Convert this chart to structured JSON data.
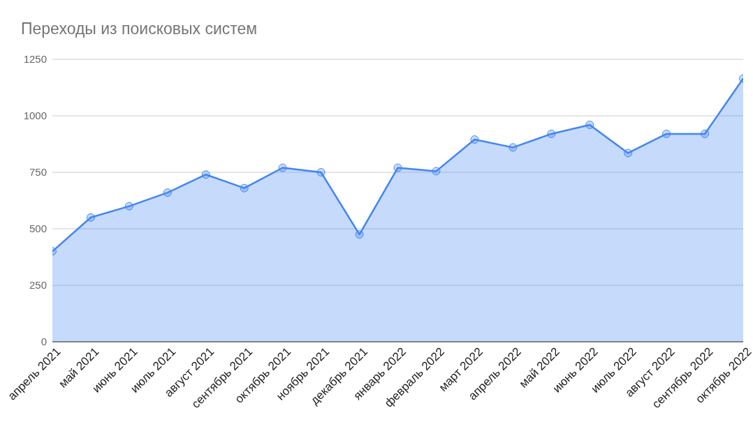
{
  "chart_data": {
    "type": "area",
    "title": "Переходы из поисковых систем",
    "categories": [
      "апрель 2021",
      "май 2021",
      "июнь 2021",
      "июль 2021",
      "август 2021",
      "сентябрь 2021",
      "октябрь 2021",
      "ноябрь 2021",
      "декабрь 2021",
      "январь 2022",
      "февраль 2022",
      "март 2022",
      "апрель 2022",
      "май 2022",
      "июнь 2022",
      "июль 2022",
      "август 2022",
      "сентябрь 2022",
      "октябрь 2022"
    ],
    "series": [
      {
        "color": "#4285f4",
        "values": [
          400,
          550,
          600,
          660,
          740,
          680,
          770,
          750,
          475,
          770,
          755,
          895,
          860,
          920,
          960,
          835,
          920,
          920,
          1165
        ]
      }
    ],
    "ylim": [
      0,
      1250
    ],
    "yticks": [
      0,
      250,
      500,
      750,
      1000,
      1250
    ],
    "grid": "y",
    "legend": false,
    "marker": "circle",
    "line_style": "solid"
  }
}
